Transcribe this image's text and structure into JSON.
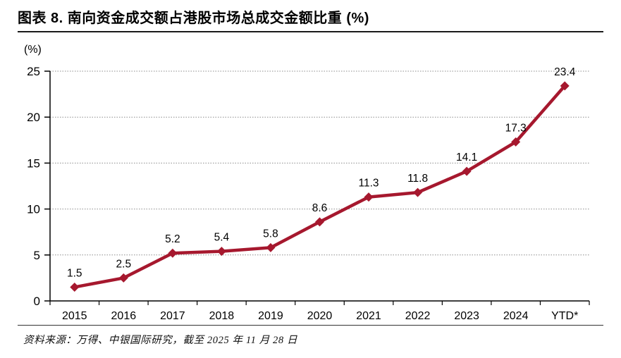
{
  "page": {
    "title": "图表 8. 南向资金成交额占港股市场总成交金额比重 (%)",
    "source_note": "资料来源：万得、中银国际研究，截至 2025 年 11 月 28 日"
  },
  "chart_data": {
    "type": "line",
    "title": "南向资金成交额占港股市场总成交金额比重 (%)",
    "unit_label": "(%)",
    "categories": [
      "2015",
      "2016",
      "2017",
      "2018",
      "2019",
      "2020",
      "2021",
      "2022",
      "2023",
      "2024",
      "YTD*"
    ],
    "values": [
      1.5,
      2.5,
      5.2,
      5.4,
      5.8,
      8.6,
      11.3,
      11.8,
      14.1,
      17.3,
      23.4
    ],
    "data_labels": [
      "1.5",
      "2.5",
      "5.2",
      "5.4",
      "5.8",
      "8.6",
      "11.3",
      "11.8",
      "14.1",
      "17.3",
      "23.4"
    ],
    "xlabel": "",
    "ylabel": "(%)",
    "ylim": [
      0,
      25
    ],
    "yticks": [
      0,
      5,
      10,
      15,
      20,
      25
    ],
    "grid": "horizontal-dotted",
    "legend": "none",
    "marker": "diamond",
    "line_color": "#A6182E",
    "axis_color": "#000000",
    "gridline_color": "#8c8c8c",
    "label_color": "#000000"
  }
}
